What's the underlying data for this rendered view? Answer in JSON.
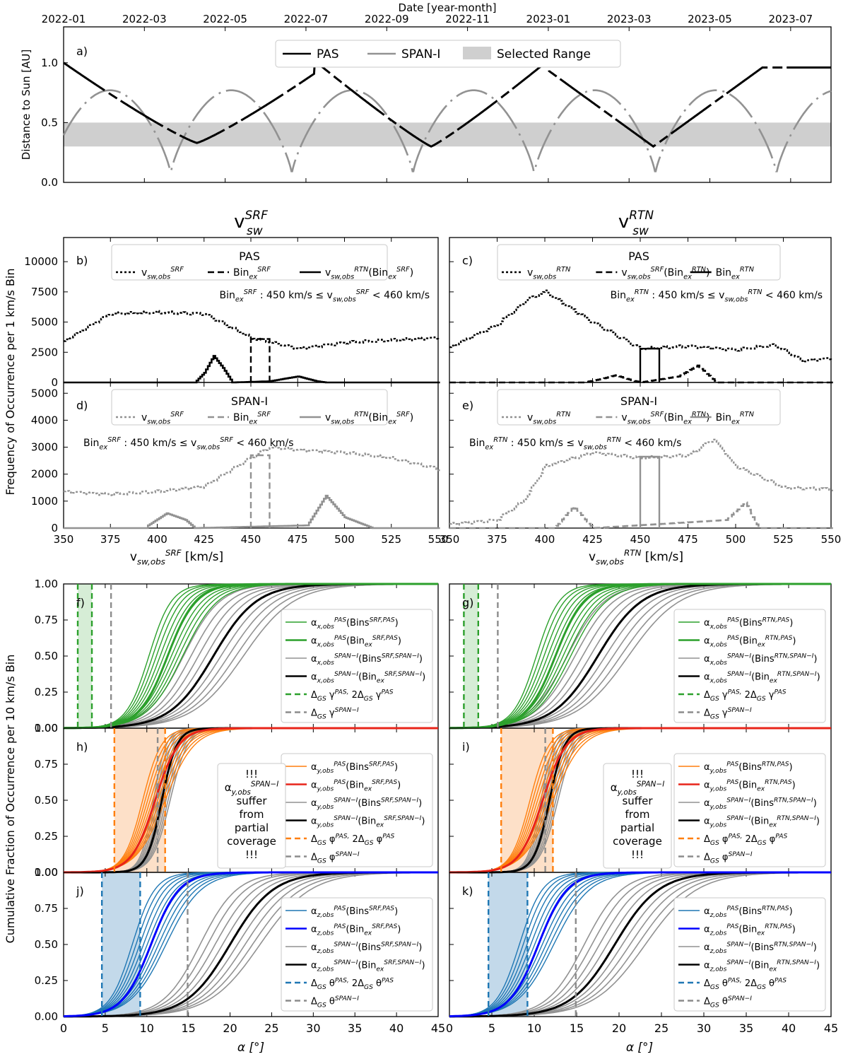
{
  "figure": {
    "top_axis_label": "Date [year-month]",
    "mid_ylabel": "Frequency of Occurrence per 1 km/s Bin",
    "bottom_ylabel": "Cumulative Fraction of Occurrence per 10 km/s Bin",
    "col_title_left": "v",
    "col_title_left_sub": "sw",
    "col_title_left_sup": "SRF",
    "col_title_right": "v",
    "col_title_right_sub": "sw",
    "col_title_right_sup": "RTN"
  },
  "colors": {
    "pas": "#000000",
    "span": "#929292",
    "range": "#cfcfcf",
    "green": "#2ca02c",
    "green_fill": "#d6edd6",
    "orange": "#ff7f0e",
    "orange_fill": "#fde0c8",
    "red": "#e8241a",
    "steel": "#1f77b4",
    "blue": "#0000ff",
    "blue_fill": "#c3d9ea",
    "gray_dash": "#8c8c8c"
  },
  "chart_data": [
    {
      "id": "a",
      "type": "line",
      "panel_label": "a)",
      "xlabel": "Date [year-month]",
      "ylabel": "Distance to Sun [AU]",
      "x_ticks": [
        "2022-01",
        "2022-03",
        "2022-05",
        "2022-07",
        "2022-09",
        "2022-11",
        "2023-01",
        "2023-03",
        "2023-05",
        "2023-07"
      ],
      "x_range": [
        "2022-01",
        "2023-08"
      ],
      "ylim": [
        0,
        1.3
      ],
      "y_ticks": [
        "0.0",
        "0.5",
        "1.0"
      ],
      "selected_range": [
        0.3,
        0.5
      ],
      "legend": [
        "PAS",
        "SPAN-I",
        "Selected Range"
      ],
      "series": [
        {
          "name": "PAS",
          "x": [
            "2022-01",
            "2022-02",
            "2022-03",
            "2022-04",
            "2022-05",
            "2022-07",
            "2022-09",
            "2022-10",
            "2022-11",
            "2023-01",
            "2023-03",
            "2023-04",
            "2023-05",
            "2023-06",
            "2023-07"
          ],
          "y": [
            1.0,
            0.88,
            0.55,
            0.35,
            0.66,
            1.01,
            0.6,
            0.3,
            0.66,
            0.96,
            0.55,
            0.3,
            0.72,
            0.9,
            0.95
          ]
        },
        {
          "name": "SPAN-I",
          "x": [
            "2022-01",
            "2022-02",
            "2022-03",
            "2022-04",
            "2022-05",
            "2022-06",
            "2022-07",
            "2022-08",
            "2022-09",
            "2022-10",
            "2022-11",
            "2022-12",
            "2023-01",
            "2023-02",
            "2023-03",
            "2023-04",
            "2023-05",
            "2023-06",
            "2023-07",
            "2023-08"
          ],
          "y": [
            0.76,
            0.6,
            0.08,
            0.6,
            0.76,
            0.08,
            0.74,
            0.6,
            0.08,
            0.76,
            0.6,
            0.08,
            0.76,
            0.6,
            0.08,
            0.76,
            0.6,
            0.08,
            0.6,
            0.72
          ]
        }
      ]
    },
    {
      "id": "b",
      "type": "histogram",
      "panel_label": "b)",
      "title": "PAS",
      "legend": [
        "v_sw,obs^SRF",
        "Bin_ex^SRF",
        "v_sw,obs^RTN(Bin_ex^SRF)"
      ],
      "annotation": "Bin_ex^SRF : 450 km/s ≤ v_sw,obs^SRF < 460 km/s",
      "xlim": [
        350,
        550
      ],
      "ylim": [
        0,
        12000
      ],
      "y_ticks": [
        0,
        2500,
        5000,
        7500,
        10000
      ],
      "bin_ex": [
        450,
        460
      ],
      "series": [
        {
          "name": "v_sw,obs^SRF",
          "x": [
            350,
            375,
            400,
            425,
            450,
            475,
            500,
            525,
            550
          ],
          "y": [
            3400,
            5700,
            5800,
            5700,
            3700,
            2800,
            3300,
            3500,
            3700
          ]
        },
        {
          "name": "Bin_ex^SRF",
          "x": [
            450,
            460
          ],
          "y": [
            3600,
            3600
          ]
        },
        {
          "name": "v_sw,obs^RTN(Bin_ex^SRF)",
          "x": [
            420,
            425,
            430,
            435,
            440,
            460,
            475,
            485,
            490
          ],
          "y": [
            0,
            800,
            2200,
            1200,
            0,
            100,
            500,
            100,
            0
          ]
        }
      ]
    },
    {
      "id": "c",
      "type": "histogram",
      "panel_label": "c)",
      "title": "PAS",
      "legend": [
        "v_sw,obs^RTN",
        "v_sw,obs^SRF(Bin_ex^RTN)",
        "Bin_ex^RTN"
      ],
      "annotation": "Bin_ex^RTN : 450 km/s ≤ v_sw,obs^RTN < 460 km/s",
      "xlim": [
        350,
        550
      ],
      "ylim": [
        0,
        12000
      ],
      "y_ticks": [
        0,
        2500,
        5000,
        7500,
        10000
      ],
      "bin_ex": [
        450,
        460
      ],
      "series": [
        {
          "name": "v_sw,obs^RTN",
          "x": [
            350,
            375,
            390,
            400,
            425,
            450,
            475,
            500,
            520,
            535,
            550
          ],
          "y": [
            2900,
            4800,
            6800,
            7500,
            5000,
            2800,
            3000,
            2700,
            3100,
            1800,
            2000
          ]
        },
        {
          "name": "v_sw,obs^SRF(Bin_ex^RTN)",
          "x": [
            420,
            430,
            437,
            445,
            450,
            470,
            480,
            490
          ],
          "y": [
            0,
            300,
            600,
            200,
            0,
            500,
            1400,
            0
          ]
        },
        {
          "name": "Bin_ex^RTN",
          "x": [
            450,
            460
          ],
          "y": [
            2800,
            2800
          ]
        }
      ]
    },
    {
      "id": "d",
      "type": "histogram",
      "panel_label": "d)",
      "title": "SPAN-I",
      "legend": [
        "v_sw,obs^SRF",
        "Bin_ex^SRF",
        "v_sw,obs^RTN(Bin_ex^SRF)"
      ],
      "annotation": "Bin_ex^SRF : 450 km/s ≤ v_sw,obs^SRF < 460 km/s",
      "ylabel": "Frequency of Occurrence per 1 km/s Bin",
      "xlabel": "v_sw,obs^SRF [km/s]",
      "xlim": [
        350,
        550
      ],
      "ylim": [
        0,
        5400
      ],
      "y_ticks": [
        0,
        1000,
        2000,
        3000,
        4000,
        5000
      ],
      "bin_ex": [
        450,
        460
      ],
      "series": [
        {
          "name": "v_sw,obs^SRF",
          "x": [
            350,
            375,
            400,
            425,
            450,
            460,
            475,
            500,
            525,
            550
          ],
          "y": [
            1350,
            1250,
            1350,
            1550,
            2600,
            3000,
            2900,
            2800,
            2600,
            2200
          ]
        },
        {
          "name": "Bin_ex^SRF",
          "x": [
            450,
            460
          ],
          "y": [
            2700,
            2700
          ]
        },
        {
          "name": "v_sw,obs^RTN(Bin_ex^SRF)",
          "x": [
            395,
            405,
            415,
            420,
            480,
            490,
            500,
            515
          ],
          "y": [
            100,
            550,
            300,
            0,
            100,
            1200,
            400,
            0
          ]
        }
      ]
    },
    {
      "id": "e",
      "type": "histogram",
      "panel_label": "e)",
      "title": "SPAN-I",
      "legend": [
        "v_sw,obs^RTN",
        "v_sw,obs^SRF(Bin_ex^RTN)",
        "Bin_ex^RTN"
      ],
      "annotation": "Bin_ex^RTN : 450 km/s ≤ v_sw,obs^RTN < 460 km/s",
      "xlabel": "v_sw,obs^RTN [km/s]",
      "xlim": [
        350,
        550
      ],
      "ylim": [
        0,
        5400
      ],
      "y_ticks": [
        0,
        1000,
        2000,
        3000,
        4000,
        5000
      ],
      "bin_ex": [
        450,
        460
      ],
      "series": [
        {
          "name": "v_sw,obs^RTN",
          "x": [
            350,
            375,
            390,
            400,
            425,
            450,
            475,
            488,
            500,
            525,
            550
          ],
          "y": [
            150,
            300,
            1100,
            2300,
            2800,
            2600,
            2700,
            3300,
            2300,
            1500,
            1450
          ]
        },
        {
          "name": "v_sw,obs^SRF(Bin_ex^RTN)",
          "x": [
            405,
            415,
            425,
            495,
            505,
            512
          ],
          "y": [
            0,
            800,
            0,
            300,
            950,
            0
          ]
        },
        {
          "name": "Bin_ex^RTN",
          "x": [
            450,
            460
          ],
          "y": [
            2650,
            2650
          ]
        }
      ]
    },
    {
      "id": "f",
      "type": "line",
      "panel_label": "f)",
      "component": "x",
      "frame": "SRF",
      "xlim": [
        0,
        45
      ],
      "ylim": [
        0,
        1
      ],
      "legend": [
        "α_x,obs^PAS(Bins^SRF,PAS)",
        "α_x,obs^PAS(Bin_ex^SRF,PAS)",
        "α_x,obs^SPAN−I(Bins^SRF,SPAN−I)",
        "α_x,obs^SPAN−I(Bin_ex^SRF,SPAN−I)",
        "Δ_GS γ^PAS, 2Δ_GS γ^PAS",
        "Δ_GS γ^SPAN−I"
      ],
      "pas_delta": [
        1.7,
        3.4
      ],
      "span_delta": 5.7,
      "pas_median_deg": 12.5,
      "span_median_deg": 18.0
    },
    {
      "id": "g",
      "type": "line",
      "panel_label": "g)",
      "component": "x",
      "frame": "RTN",
      "xlim": [
        0,
        45
      ],
      "ylim": [
        0,
        1
      ],
      "legend": [
        "α_x,obs^PAS(Bins^RTN,PAS)",
        "α_x,obs^PAS(Bin_ex^RTN,PAS)",
        "α_x,obs^SPAN−I(Bins^RTN,SPAN−I)",
        "α_x,obs^SPAN−I(Bin_ex^RTN,SPAN−I)",
        "Δ_GS γ^PAS, 2Δ_GS γ^PAS",
        "Δ_GS γ^SPAN−I"
      ],
      "pas_delta": [
        1.7,
        3.4
      ],
      "span_delta": 5.7,
      "pas_median_deg": 12.5,
      "span_median_deg": 17.5
    },
    {
      "id": "h",
      "type": "line",
      "panel_label": "h)",
      "component": "y",
      "frame": "SRF",
      "xlim": [
        0,
        45
      ],
      "ylim": [
        0,
        1
      ],
      "legend": [
        "α_y,obs^PAS(Bins^SRF,PAS)",
        "α_y,obs^PAS(Bin_ex^SRF,PAS)",
        "α_y,obs^SPAN−I(Bins^SRF,SPAN−I)",
        "α_y,obs^SPAN−I(Bin_ex^SRF,SPAN−I)",
        "Δ_GS φ^PAS, 2Δ_GS φ^PAS",
        "Δ_GS φ^SPAN−I"
      ],
      "note_lines": [
        "!!!",
        "α_y,obs^SPAN−I",
        "suffer",
        "from",
        "partial",
        "coverage",
        "!!!"
      ],
      "pas_delta": [
        6.1,
        12.2
      ],
      "span_delta": 11.3,
      "pas_median_deg": 11.0,
      "span_median_deg": 11.8
    },
    {
      "id": "i",
      "type": "line",
      "panel_label": "i)",
      "component": "y",
      "frame": "RTN",
      "xlim": [
        0,
        45
      ],
      "ylim": [
        0,
        1
      ],
      "legend": [
        "α_y,obs^PAS(Bins^RTN,PAS)",
        "α_y,obs^PAS(Bin_ex^RTN,PAS)",
        "α_y,obs^SPAN−I(Bins^RTN,SPAN−I)",
        "α_y,obs^SPAN−I(Bin_ex^RTN,SPAN−I)",
        "Δ_GS φ^PAS, 2Δ_GS φ^PAS",
        "Δ_GS φ^SPAN−I"
      ],
      "note_lines": [
        "!!!",
        "α_y,obs^SPAN−I",
        "suffer",
        "from",
        "partial",
        "coverage",
        "!!!"
      ],
      "pas_delta": [
        6.1,
        12.2
      ],
      "span_delta": 11.3,
      "pas_median_deg": 11.0,
      "span_median_deg": 11.8
    },
    {
      "id": "j",
      "type": "line",
      "panel_label": "j)",
      "component": "z",
      "frame": "SRF",
      "xlim": [
        0,
        45
      ],
      "ylim": [
        0,
        1
      ],
      "xlabel": "α [°]",
      "ylabel": "Cumulative Fraction of Occurrence per 10 km/s Bin",
      "legend": [
        "α_z,obs^PAS(Bins^SRF,PAS)",
        "α_z,obs^PAS(Bin_ex^SRF,PAS)",
        "α_z,obs^SPAN−I(Bins^SRF,SPAN−I)",
        "α_z,obs^SPAN−I(Bin_ex^SRF,SPAN−I)",
        "Δ_GS θ^PAS, 2Δ_GS θ^PAS",
        "Δ_GS θ^SPAN−I"
      ],
      "pas_delta": [
        4.6,
        9.2
      ],
      "span_delta": 14.9,
      "pas_median_deg": 10.5,
      "span_median_deg": 20.0
    },
    {
      "id": "k",
      "type": "line",
      "panel_label": "k)",
      "component": "z",
      "frame": "RTN",
      "xlim": [
        0,
        45
      ],
      "ylim": [
        0,
        1
      ],
      "xlabel": "α [°]",
      "legend": [
        "α_z,obs^PAS(Bins^RTN,PAS)",
        "α_z,obs^PAS(Bin_ex^RTN,PAS)",
        "α_z,obs^SPAN−I(Bins^RTN,SPAN−I)",
        "α_z,obs^SPAN−I(Bin_ex^RTN,SPAN−I)",
        "Δ_GS θ^PAS, 2Δ_GS θ^PAS",
        "Δ_GS θ^SPAN−I"
      ],
      "pas_delta": [
        4.6,
        9.2
      ],
      "span_delta": 14.9,
      "pas_median_deg": 10.5,
      "span_median_deg": 19.5
    }
  ]
}
